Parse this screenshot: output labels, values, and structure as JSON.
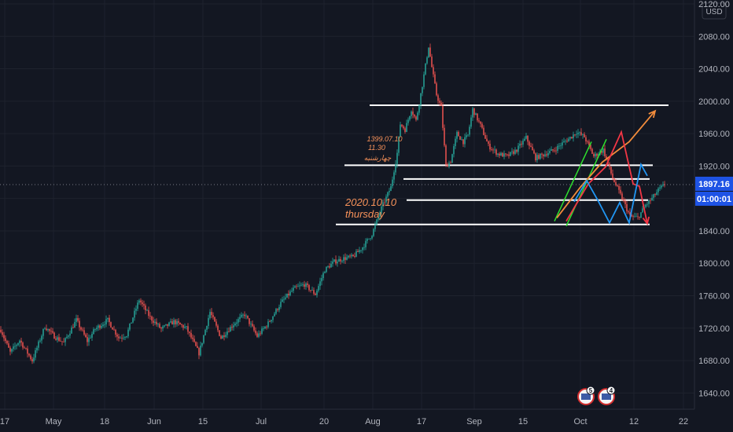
{
  "currency_label": "USD",
  "chart_data": {
    "type": "candlestick",
    "y_axis": {
      "min": 1620,
      "max": 2120,
      "ticks": [
        1640,
        1680,
        1720,
        1760,
        1800,
        1840,
        1880,
        1920,
        1960,
        2000,
        2040,
        2080,
        2120
      ],
      "tick_labels": [
        "1640.00",
        "1680.00",
        "1720.00",
        "1760.00",
        "1800.00",
        "1840.00",
        "1880.00",
        "1920.00",
        "1960.00",
        "2000.00",
        "2040.00",
        "2080.00",
        "2120.00"
      ]
    },
    "x_axis": {
      "ticks": [
        "17",
        "May",
        "18",
        "Jun",
        "15",
        "Jul",
        "20",
        "Aug",
        "17",
        "Sep",
        "15",
        "Oct",
        "12",
        "22"
      ]
    },
    "last_price": {
      "value": 1897.16,
      "label": "1897.16",
      "countdown": "01:00:01",
      "color": "#1e53e5"
    },
    "series": [
      {
        "name": "",
        "anchors": [
          [
            0,
            1718
          ],
          [
            6,
            1690
          ],
          [
            12,
            1705
          ],
          [
            20,
            1680
          ],
          [
            28,
            1722
          ],
          [
            34,
            1710
          ],
          [
            40,
            1702
          ],
          [
            48,
            1730
          ],
          [
            55,
            1704
          ],
          [
            60,
            1719
          ],
          [
            68,
            1730
          ],
          [
            75,
            1708
          ],
          [
            80,
            1712
          ],
          [
            88,
            1755
          ],
          [
            95,
            1733
          ],
          [
            102,
            1719
          ],
          [
            110,
            1728
          ],
          [
            118,
            1720
          ],
          [
            126,
            1689
          ],
          [
            133,
            1740
          ],
          [
            140,
            1708
          ],
          [
            148,
            1725
          ],
          [
            155,
            1737
          ],
          [
            163,
            1710
          ],
          [
            170,
            1726
          ],
          [
            178,
            1751
          ],
          [
            186,
            1768
          ],
          [
            193,
            1774
          ],
          [
            200,
            1762
          ],
          [
            206,
            1792
          ],
          [
            212,
            1802
          ],
          [
            218,
            1806
          ],
          [
            224,
            1808
          ],
          [
            230,
            1820
          ],
          [
            236,
            1836
          ],
          [
            242,
            1868
          ],
          [
            248,
            1894
          ],
          [
            252,
            1936
          ],
          [
            254,
            1972
          ],
          [
            257,
            1965
          ],
          [
            261,
            1990
          ],
          [
            264,
            1976
          ],
          [
            268,
            2020
          ],
          [
            272,
            2068
          ],
          [
            274,
            2042
          ],
          [
            277,
            2008
          ],
          [
            280,
            1992
          ],
          [
            283,
            1920
          ],
          [
            286,
            1926
          ],
          [
            290,
            1960
          ],
          [
            294,
            1950
          ],
          [
            297,
            1958
          ],
          [
            300,
            1990
          ],
          [
            305,
            1970
          ],
          [
            310,
            1945
          ],
          [
            316,
            1935
          ],
          [
            322,
            1932
          ],
          [
            328,
            1940
          ],
          [
            334,
            1955
          ],
          [
            340,
            1930
          ],
          [
            346,
            1935
          ],
          [
            352,
            1940
          ],
          [
            357,
            1948
          ],
          [
            362,
            1955
          ],
          [
            366,
            1962
          ],
          [
            371,
            1956
          ],
          [
            377,
            1932
          ],
          [
            383,
            1940
          ],
          [
            389,
            1905
          ],
          [
            395,
            1880
          ],
          [
            400,
            1858
          ],
          [
            405,
            1856
          ],
          [
            410,
            1872
          ],
          [
            414,
            1880
          ],
          [
            418,
            1890
          ],
          [
            422,
            1897.16
          ]
        ],
        "up_color": "#26a69a",
        "down_color": "#ef5350"
      }
    ],
    "horizontal_levels": [
      1995,
      1921,
      1904,
      1878,
      1848
    ],
    "annotations": [
      {
        "text": "1399.07.10",
        "size": 9
      },
      {
        "text": "11.30",
        "size": 9
      },
      {
        "text": "چهارشنبه",
        "size": 9
      },
      {
        "text": "2020.10.10",
        "size": 13
      },
      {
        "text": "thursday",
        "size": 13
      }
    ],
    "event_badges": [
      "5",
      "4"
    ]
  }
}
